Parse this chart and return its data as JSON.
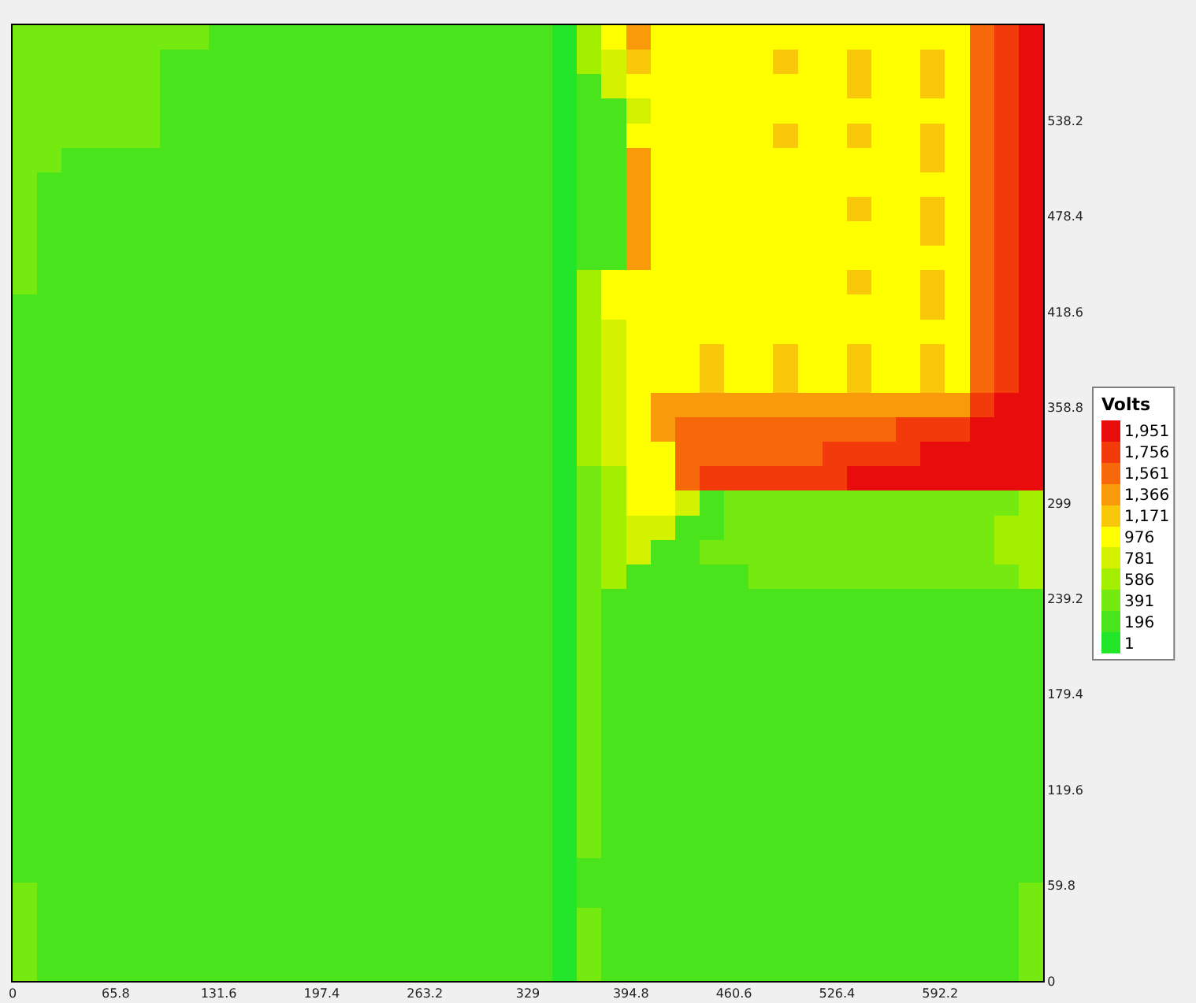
{
  "chart_data": {
    "type": "heatmap",
    "clabel": "Volts",
    "xlim": [
      0,
      658
    ],
    "xticks": [
      0,
      65.8,
      131.6,
      197.4,
      263.2,
      329,
      394.8,
      460.6,
      526.4,
      592.2
    ],
    "ylim": [
      0,
      598
    ],
    "yticks": [
      0,
      59.8,
      119.6,
      179.4,
      239.2,
      299,
      358.8,
      418.6,
      478.4,
      538.2
    ],
    "clim": [
      -96.5,
      2048.5
    ],
    "cticks": [
      1,
      196,
      391,
      586,
      781,
      976,
      {
        "value": 1171,
        "label": "1,171"
      },
      {
        "value": 1366,
        "label": "1,366"
      },
      {
        "value": 1561,
        "label": "1,561"
      },
      {
        "value": 1756,
        "label": "1,756"
      },
      {
        "value": 1951,
        "label": "1,951"
      }
    ],
    "colors": [
      "#22e62a",
      "#4ae41c",
      "#74ea10",
      "#a4ee00",
      "#d4f200",
      "#ffff00",
      "#f9c80a",
      "#f89a0a",
      "#f6680a",
      "#f23a0a",
      "#e80c0c"
    ],
    "cells": [
      [
        391,
        391,
        391,
        391,
        391,
        391,
        391,
        391,
        196,
        196,
        196,
        196,
        196,
        196,
        196,
        196,
        196,
        196,
        196,
        196,
        196,
        196,
        1,
        586,
        976,
        1366,
        976,
        976,
        976,
        976,
        976,
        976,
        976,
        976,
        976,
        976,
        976,
        976,
        976,
        1561,
        1756,
        1951
      ],
      [
        391,
        391,
        391,
        391,
        391,
        391,
        196,
        196,
        196,
        196,
        196,
        196,
        196,
        196,
        196,
        196,
        196,
        196,
        196,
        196,
        196,
        196,
        1,
        586,
        781,
        1171,
        976,
        976,
        976,
        976,
        976,
        1171,
        976,
        976,
        1171,
        976,
        976,
        1171,
        976,
        1561,
        1756,
        1951
      ],
      [
        391,
        391,
        391,
        391,
        391,
        391,
        196,
        196,
        196,
        196,
        196,
        196,
        196,
        196,
        196,
        196,
        196,
        196,
        196,
        196,
        196,
        196,
        1,
        196,
        781,
        976,
        976,
        976,
        976,
        976,
        976,
        976,
        976,
        976,
        1171,
        976,
        976,
        1171,
        976,
        1561,
        1756,
        1951
      ],
      [
        391,
        391,
        391,
        391,
        391,
        391,
        196,
        196,
        196,
        196,
        196,
        196,
        196,
        196,
        196,
        196,
        196,
        196,
        196,
        196,
        196,
        196,
        1,
        196,
        196,
        781,
        976,
        976,
        976,
        976,
        976,
        976,
        976,
        976,
        976,
        976,
        976,
        976,
        976,
        1561,
        1756,
        1951
      ],
      [
        391,
        391,
        391,
        391,
        391,
        391,
        196,
        196,
        196,
        196,
        196,
        196,
        196,
        196,
        196,
        196,
        196,
        196,
        196,
        196,
        196,
        196,
        1,
        196,
        196,
        976,
        976,
        976,
        976,
        976,
        976,
        1171,
        976,
        976,
        1171,
        976,
        976,
        1171,
        976,
        1561,
        1756,
        1951
      ],
      [
        391,
        391,
        196,
        196,
        196,
        196,
        196,
        196,
        196,
        196,
        196,
        196,
        196,
        196,
        196,
        196,
        196,
        196,
        196,
        196,
        196,
        196,
        1,
        196,
        196,
        1366,
        976,
        976,
        976,
        976,
        976,
        976,
        976,
        976,
        976,
        976,
        976,
        1171,
        976,
        1561,
        1756,
        1951
      ],
      [
        391,
        196,
        196,
        196,
        196,
        196,
        196,
        196,
        196,
        196,
        196,
        196,
        196,
        196,
        196,
        196,
        196,
        196,
        196,
        196,
        196,
        196,
        1,
        196,
        196,
        1366,
        976,
        976,
        976,
        976,
        976,
        976,
        976,
        976,
        976,
        976,
        976,
        976,
        976,
        1561,
        1756,
        1951
      ],
      [
        391,
        196,
        196,
        196,
        196,
        196,
        196,
        196,
        196,
        196,
        196,
        196,
        196,
        196,
        196,
        196,
        196,
        196,
        196,
        196,
        196,
        196,
        1,
        196,
        196,
        1366,
        976,
        976,
        976,
        976,
        976,
        976,
        976,
        976,
        1171,
        976,
        976,
        1171,
        976,
        1561,
        1756,
        1951
      ],
      [
        391,
        196,
        196,
        196,
        196,
        196,
        196,
        196,
        196,
        196,
        196,
        196,
        196,
        196,
        196,
        196,
        196,
        196,
        196,
        196,
        196,
        196,
        1,
        196,
        196,
        1366,
        976,
        976,
        976,
        976,
        976,
        976,
        976,
        976,
        976,
        976,
        976,
        1171,
        976,
        1561,
        1756,
        1951
      ],
      [
        391,
        196,
        196,
        196,
        196,
        196,
        196,
        196,
        196,
        196,
        196,
        196,
        196,
        196,
        196,
        196,
        196,
        196,
        196,
        196,
        196,
        196,
        1,
        196,
        196,
        1366,
        976,
        976,
        976,
        976,
        976,
        976,
        976,
        976,
        976,
        976,
        976,
        976,
        976,
        1561,
        1756,
        1951
      ],
      [
        391,
        196,
        196,
        196,
        196,
        196,
        196,
        196,
        196,
        196,
        196,
        196,
        196,
        196,
        196,
        196,
        196,
        196,
        196,
        196,
        196,
        196,
        1,
        586,
        976,
        976,
        976,
        976,
        976,
        976,
        976,
        976,
        976,
        976,
        1171,
        976,
        976,
        1171,
        976,
        1561,
        1756,
        1951
      ],
      [
        196,
        196,
        196,
        196,
        196,
        196,
        196,
        196,
        196,
        196,
        196,
        196,
        196,
        196,
        196,
        196,
        196,
        196,
        196,
        196,
        196,
        196,
        1,
        586,
        976,
        976,
        976,
        976,
        976,
        976,
        976,
        976,
        976,
        976,
        976,
        976,
        976,
        1171,
        976,
        1561,
        1756,
        1951
      ],
      [
        196,
        196,
        196,
        196,
        196,
        196,
        196,
        196,
        196,
        196,
        196,
        196,
        196,
        196,
        196,
        196,
        196,
        196,
        196,
        196,
        196,
        196,
        1,
        586,
        781,
        976,
        976,
        976,
        976,
        976,
        976,
        976,
        976,
        976,
        976,
        976,
        976,
        976,
        976,
        1561,
        1756,
        1951
      ],
      [
        196,
        196,
        196,
        196,
        196,
        196,
        196,
        196,
        196,
        196,
        196,
        196,
        196,
        196,
        196,
        196,
        196,
        196,
        196,
        196,
        196,
        196,
        1,
        586,
        781,
        976,
        976,
        976,
        1171,
        976,
        976,
        1171,
        976,
        976,
        1171,
        976,
        976,
        1171,
        976,
        1561,
        1756,
        1951
      ],
      [
        196,
        196,
        196,
        196,
        196,
        196,
        196,
        196,
        196,
        196,
        196,
        196,
        196,
        196,
        196,
        196,
        196,
        196,
        196,
        196,
        196,
        196,
        1,
        586,
        781,
        976,
        976,
        976,
        1171,
        976,
        976,
        1171,
        976,
        976,
        1171,
        976,
        976,
        1171,
        976,
        1561,
        1756,
        1951
      ],
      [
        196,
        196,
        196,
        196,
        196,
        196,
        196,
        196,
        196,
        196,
        196,
        196,
        196,
        196,
        196,
        196,
        196,
        196,
        196,
        196,
        196,
        196,
        1,
        586,
        781,
        976,
        1366,
        1366,
        1366,
        1366,
        1366,
        1366,
        1366,
        1366,
        1366,
        1366,
        1366,
        1366,
        1366,
        1756,
        1951,
        1951
      ],
      [
        196,
        196,
        196,
        196,
        196,
        196,
        196,
        196,
        196,
        196,
        196,
        196,
        196,
        196,
        196,
        196,
        196,
        196,
        196,
        196,
        196,
        196,
        1,
        586,
        781,
        976,
        1366,
        1561,
        1561,
        1561,
        1561,
        1561,
        1561,
        1561,
        1561,
        1561,
        1756,
        1756,
        1756,
        1951,
        1951,
        1951
      ],
      [
        196,
        196,
        196,
        196,
        196,
        196,
        196,
        196,
        196,
        196,
        196,
        196,
        196,
        196,
        196,
        196,
        196,
        196,
        196,
        196,
        196,
        196,
        1,
        586,
        781,
        976,
        976,
        1561,
        1561,
        1561,
        1561,
        1561,
        1561,
        1756,
        1756,
        1756,
        1756,
        1951,
        1951,
        1951,
        1951,
        1951
      ],
      [
        196,
        196,
        196,
        196,
        196,
        196,
        196,
        196,
        196,
        196,
        196,
        196,
        196,
        196,
        196,
        196,
        196,
        196,
        196,
        196,
        196,
        196,
        1,
        391,
        586,
        976,
        976,
        1561,
        1756,
        1756,
        1756,
        1756,
        1756,
        1756,
        1951,
        1951,
        1951,
        1951,
        1951,
        1951,
        1951,
        1951
      ],
      [
        196,
        196,
        196,
        196,
        196,
        196,
        196,
        196,
        196,
        196,
        196,
        196,
        196,
        196,
        196,
        196,
        196,
        196,
        196,
        196,
        196,
        196,
        1,
        391,
        586,
        976,
        976,
        781,
        196,
        391,
        391,
        391,
        391,
        391,
        391,
        391,
        391,
        391,
        391,
        391,
        391,
        586
      ],
      [
        196,
        196,
        196,
        196,
        196,
        196,
        196,
        196,
        196,
        196,
        196,
        196,
        196,
        196,
        196,
        196,
        196,
        196,
        196,
        196,
        196,
        196,
        1,
        391,
        586,
        781,
        781,
        196,
        196,
        391,
        391,
        391,
        391,
        391,
        391,
        391,
        391,
        391,
        391,
        391,
        586,
        586
      ],
      [
        196,
        196,
        196,
        196,
        196,
        196,
        196,
        196,
        196,
        196,
        196,
        196,
        196,
        196,
        196,
        196,
        196,
        196,
        196,
        196,
        196,
        196,
        1,
        391,
        586,
        781,
        196,
        196,
        391,
        391,
        391,
        391,
        391,
        391,
        391,
        391,
        391,
        391,
        391,
        391,
        586,
        586
      ],
      [
        196,
        196,
        196,
        196,
        196,
        196,
        196,
        196,
        196,
        196,
        196,
        196,
        196,
        196,
        196,
        196,
        196,
        196,
        196,
        196,
        196,
        196,
        1,
        391,
        586,
        196,
        196,
        196,
        196,
        196,
        391,
        391,
        391,
        391,
        391,
        391,
        391,
        391,
        391,
        391,
        391,
        586
      ],
      [
        196,
        196,
        196,
        196,
        196,
        196,
        196,
        196,
        196,
        196,
        196,
        196,
        196,
        196,
        196,
        196,
        196,
        196,
        196,
        196,
        196,
        196,
        1,
        391,
        196,
        196,
        196,
        196,
        196,
        196,
        196,
        196,
        196,
        196,
        196,
        196,
        196,
        196,
        196,
        196,
        196,
        196
      ],
      [
        196,
        196,
        196,
        196,
        196,
        196,
        196,
        196,
        196,
        196,
        196,
        196,
        196,
        196,
        196,
        196,
        196,
        196,
        196,
        196,
        196,
        196,
        1,
        391,
        196,
        196,
        196,
        196,
        196,
        196,
        196,
        196,
        196,
        196,
        196,
        196,
        196,
        196,
        196,
        196,
        196,
        196
      ],
      [
        196,
        196,
        196,
        196,
        196,
        196,
        196,
        196,
        196,
        196,
        196,
        196,
        196,
        196,
        196,
        196,
        196,
        196,
        196,
        196,
        196,
        196,
        1,
        391,
        196,
        196,
        196,
        196,
        196,
        196,
        196,
        196,
        196,
        196,
        196,
        196,
        196,
        196,
        196,
        196,
        196,
        196
      ],
      [
        196,
        196,
        196,
        196,
        196,
        196,
        196,
        196,
        196,
        196,
        196,
        196,
        196,
        196,
        196,
        196,
        196,
        196,
        196,
        196,
        196,
        196,
        1,
        391,
        196,
        196,
        196,
        196,
        196,
        196,
        196,
        196,
        196,
        196,
        196,
        196,
        196,
        196,
        196,
        196,
        196,
        196
      ],
      [
        196,
        196,
        196,
        196,
        196,
        196,
        196,
        196,
        196,
        196,
        196,
        196,
        196,
        196,
        196,
        196,
        196,
        196,
        196,
        196,
        196,
        196,
        1,
        391,
        196,
        196,
        196,
        196,
        196,
        196,
        196,
        196,
        196,
        196,
        196,
        196,
        196,
        196,
        196,
        196,
        196,
        196
      ],
      [
        196,
        196,
        196,
        196,
        196,
        196,
        196,
        196,
        196,
        196,
        196,
        196,
        196,
        196,
        196,
        196,
        196,
        196,
        196,
        196,
        196,
        196,
        1,
        391,
        196,
        196,
        196,
        196,
        196,
        196,
        196,
        196,
        196,
        196,
        196,
        196,
        196,
        196,
        196,
        196,
        196,
        196
      ],
      [
        196,
        196,
        196,
        196,
        196,
        196,
        196,
        196,
        196,
        196,
        196,
        196,
        196,
        196,
        196,
        196,
        196,
        196,
        196,
        196,
        196,
        196,
        1,
        391,
        196,
        196,
        196,
        196,
        196,
        196,
        196,
        196,
        196,
        196,
        196,
        196,
        196,
        196,
        196,
        196,
        196,
        196
      ],
      [
        196,
        196,
        196,
        196,
        196,
        196,
        196,
        196,
        196,
        196,
        196,
        196,
        196,
        196,
        196,
        196,
        196,
        196,
        196,
        196,
        196,
        196,
        1,
        391,
        196,
        196,
        196,
        196,
        196,
        196,
        196,
        196,
        196,
        196,
        196,
        196,
        196,
        196,
        196,
        196,
        196,
        196
      ],
      [
        196,
        196,
        196,
        196,
        196,
        196,
        196,
        196,
        196,
        196,
        196,
        196,
        196,
        196,
        196,
        196,
        196,
        196,
        196,
        196,
        196,
        196,
        1,
        391,
        196,
        196,
        196,
        196,
        196,
        196,
        196,
        196,
        196,
        196,
        196,
        196,
        196,
        196,
        196,
        196,
        196,
        196
      ],
      [
        196,
        196,
        196,
        196,
        196,
        196,
        196,
        196,
        196,
        196,
        196,
        196,
        196,
        196,
        196,
        196,
        196,
        196,
        196,
        196,
        196,
        196,
        1,
        391,
        196,
        196,
        196,
        196,
        196,
        196,
        196,
        196,
        196,
        196,
        196,
        196,
        196,
        196,
        196,
        196,
        196,
        196
      ],
      [
        196,
        196,
        196,
        196,
        196,
        196,
        196,
        196,
        196,
        196,
        196,
        196,
        196,
        196,
        196,
        196,
        196,
        196,
        196,
        196,
        196,
        196,
        1,
        391,
        196,
        196,
        196,
        196,
        196,
        196,
        196,
        196,
        196,
        196,
        196,
        196,
        196,
        196,
        196,
        196,
        196,
        196
      ],
      [
        196,
        196,
        196,
        196,
        196,
        196,
        196,
        196,
        196,
        196,
        196,
        196,
        196,
        196,
        196,
        196,
        196,
        196,
        196,
        196,
        196,
        196,
        1,
        196,
        196,
        196,
        196,
        196,
        196,
        196,
        196,
        196,
        196,
        196,
        196,
        196,
        196,
        196,
        196,
        196,
        196,
        196
      ],
      [
        391,
        196,
        196,
        196,
        196,
        196,
        196,
        196,
        196,
        196,
        196,
        196,
        196,
        196,
        196,
        196,
        196,
        196,
        196,
        196,
        196,
        196,
        1,
        196,
        196,
        196,
        196,
        196,
        196,
        196,
        196,
        196,
        196,
        196,
        196,
        196,
        196,
        196,
        196,
        196,
        196,
        391
      ],
      [
        391,
        196,
        196,
        196,
        196,
        196,
        196,
        196,
        196,
        196,
        196,
        196,
        196,
        196,
        196,
        196,
        196,
        196,
        196,
        196,
        196,
        196,
        1,
        391,
        196,
        196,
        196,
        196,
        196,
        196,
        196,
        196,
        196,
        196,
        196,
        196,
        196,
        196,
        196,
        196,
        196,
        391
      ],
      [
        391,
        196,
        196,
        196,
        196,
        196,
        196,
        196,
        196,
        196,
        196,
        196,
        196,
        196,
        196,
        196,
        196,
        196,
        196,
        196,
        196,
        196,
        1,
        391,
        196,
        196,
        196,
        196,
        196,
        196,
        196,
        196,
        196,
        196,
        196,
        196,
        196,
        196,
        196,
        196,
        196,
        391
      ],
      [
        391,
        196,
        196,
        196,
        196,
        196,
        196,
        196,
        196,
        196,
        196,
        196,
        196,
        196,
        196,
        196,
        196,
        196,
        196,
        196,
        196,
        196,
        1,
        391,
        196,
        196,
        196,
        196,
        196,
        196,
        196,
        196,
        196,
        196,
        196,
        196,
        196,
        196,
        196,
        196,
        196,
        391
      ]
    ]
  }
}
